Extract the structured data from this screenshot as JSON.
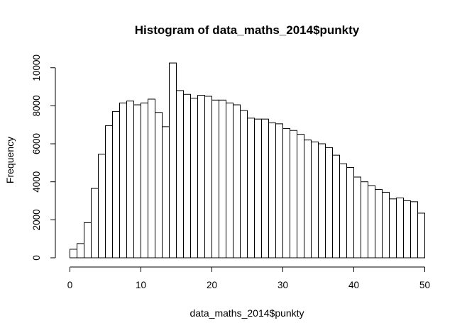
{
  "chart_data": {
    "type": "bar",
    "title": "Histogram of data_maths_2014$punkty",
    "xlabel": "data_maths_2014$punkty",
    "ylabel": "Frequency",
    "bin_edges_start": 0,
    "bin_width": 1,
    "values": [
      450,
      750,
      1850,
      3650,
      5450,
      6950,
      7700,
      8150,
      8250,
      8050,
      8150,
      8350,
      7650,
      6900,
      10250,
      8800,
      8600,
      8400,
      8550,
      8500,
      8300,
      8300,
      8150,
      8050,
      7750,
      7350,
      7300,
      7300,
      7100,
      7050,
      6800,
      6700,
      6500,
      6200,
      6100,
      6000,
      5800,
      5400,
      4950,
      4750,
      4250,
      4000,
      3800,
      3600,
      3450,
      3100,
      3150,
      3000,
      2950,
      2350
    ],
    "xlim": [
      0,
      50
    ],
    "ylim": [
      0,
      10250
    ],
    "x_ticks": [
      0,
      10,
      20,
      30,
      40,
      50
    ],
    "y_ticks": [
      0,
      2000,
      4000,
      6000,
      8000,
      10000
    ],
    "grid": false,
    "legend": "none",
    "bar_fill": "#ffffff",
    "bar_stroke": "#000000"
  }
}
